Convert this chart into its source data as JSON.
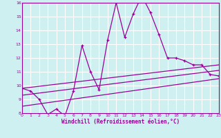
{
  "xlabel": "Windchill (Refroidissement éolien,°C)",
  "bg_color": "#cff0f0",
  "line_color": "#990099",
  "grid_color": "#ffffff",
  "xmin": 0,
  "xmax": 23,
  "ymin": 8,
  "ymax": 16,
  "xticks": [
    0,
    1,
    2,
    3,
    4,
    5,
    6,
    7,
    8,
    9,
    10,
    11,
    12,
    13,
    14,
    15,
    16,
    17,
    18,
    19,
    20,
    21,
    22,
    23
  ],
  "yticks": [
    8,
    9,
    10,
    11,
    12,
    13,
    14,
    15,
    16
  ],
  "main_x": [
    0,
    1,
    2,
    3,
    4,
    5,
    6,
    7,
    8,
    9,
    10,
    11,
    12,
    13,
    14,
    15,
    16,
    17,
    18,
    19,
    20,
    21,
    22,
    23
  ],
  "main_y": [
    9.8,
    9.6,
    9.0,
    7.9,
    8.3,
    7.8,
    9.6,
    12.9,
    11.0,
    9.7,
    13.3,
    16.0,
    13.5,
    15.2,
    16.5,
    15.3,
    13.7,
    12.0,
    12.0,
    11.8,
    11.5,
    11.5,
    10.8,
    10.7
  ],
  "trend1_x": [
    0,
    23
  ],
  "trend1_y": [
    9.8,
    11.5
  ],
  "trend2_x": [
    0,
    23
  ],
  "trend2_y": [
    9.3,
    11.1
  ],
  "trend3_x": [
    0,
    23
  ],
  "trend3_y": [
    8.5,
    10.5
  ]
}
